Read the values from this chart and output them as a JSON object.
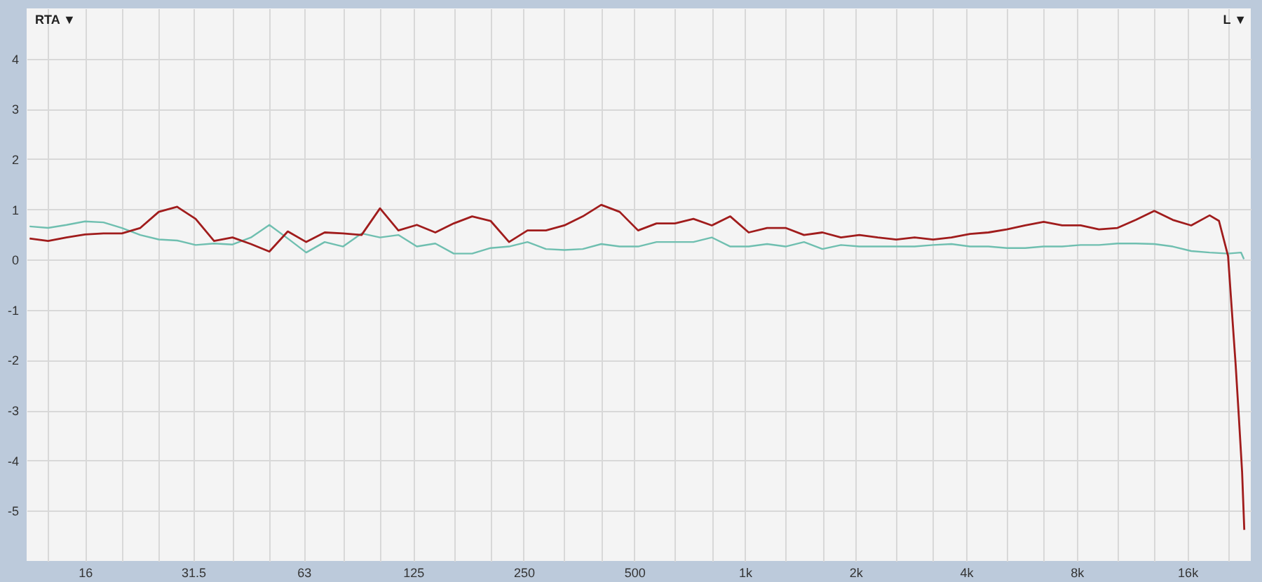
{
  "chart_data": {
    "type": "line",
    "log": "x",
    "grid": true,
    "line_style": "solid",
    "xlim": [
      11.1,
      23800
    ],
    "ylim": [
      -6,
      5
    ],
    "xticks": [
      {
        "value": 12.7,
        "label": null
      },
      16,
      {
        "value": 20.16,
        "label": null
      },
      {
        "value": 25.4,
        "label": null
      },
      31.5,
      {
        "value": 40.3,
        "label": null
      },
      {
        "value": 50.8,
        "label": null
      },
      63,
      {
        "value": 80.6,
        "label": null
      },
      {
        "value": 101.6,
        "label": null
      },
      125,
      {
        "value": 161.3,
        "label": null
      },
      {
        "value": 203.2,
        "label": null
      },
      250,
      {
        "value": 322.5,
        "label": null
      },
      {
        "value": 406.4,
        "label": null
      },
      500,
      {
        "value": 645.1,
        "label": null
      },
      {
        "value": 812.7,
        "label": null
      },
      {
        "value": 1000,
        "label": "1k"
      },
      {
        "value": 1290,
        "label": null
      },
      {
        "value": 1625,
        "label": null
      },
      {
        "value": 2000,
        "label": "2k"
      },
      {
        "value": 2580,
        "label": null
      },
      {
        "value": 3251,
        "label": null
      },
      {
        "value": 4000,
        "label": "4k"
      },
      {
        "value": 5161,
        "label": null
      },
      {
        "value": 6502,
        "label": null
      },
      {
        "value": 8000,
        "label": "8k"
      },
      {
        "value": 10321,
        "label": null
      },
      {
        "value": 13004,
        "label": null
      },
      {
        "value": 16000,
        "label": "16k"
      },
      {
        "value": 20643,
        "label": null
      }
    ],
    "yticks": [
      -5,
      -4,
      -3,
      -2,
      -1,
      0,
      1,
      2,
      3,
      4
    ],
    "annotations": [
      "RTA ▼",
      "L ▼"
    ],
    "series": [
      {
        "color": "#6fbfb0",
        "x": [
          11.31,
          12.7,
          14.25,
          16,
          17.96,
          20.16,
          22.63,
          25.4,
          28.51,
          32,
          35.92,
          40.32,
          45.25,
          50.8,
          57.02,
          64,
          71.84,
          80.63,
          90.51,
          101.6,
          114,
          128,
          143.7,
          161.3,
          181,
          203.2,
          228.1,
          256,
          287.4,
          322.5,
          362,
          406.4,
          456.1,
          512,
          574.7,
          645.1,
          724.1,
          812.7,
          912.3,
          1024,
          1149,
          1290,
          1448,
          1625,
          1825,
          2048,
          2299,
          2580,
          2896,
          3251,
          3649,
          4096,
          4598,
          5161,
          5793,
          6502,
          7298,
          8192,
          9195,
          10321,
          11585,
          13004,
          14596,
          16384,
          18390,
          20643,
          22400,
          22800
        ],
        "values": [
          0.66,
          0.63,
          0.69,
          0.76,
          0.74,
          0.63,
          0.49,
          0.4,
          0.38,
          0.29,
          0.32,
          0.3,
          0.44,
          0.69,
          0.42,
          0.14,
          0.35,
          0.26,
          0.52,
          0.44,
          0.49,
          0.26,
          0.32,
          0.12,
          0.12,
          0.23,
          0.26,
          0.35,
          0.21,
          0.19,
          0.21,
          0.31,
          0.26,
          0.26,
          0.35,
          0.35,
          0.35,
          0.44,
          0.26,
          0.26,
          0.31,
          0.26,
          0.35,
          0.21,
          0.29,
          0.26,
          0.26,
          0.26,
          0.26,
          0.29,
          0.31,
          0.26,
          0.26,
          0.23,
          0.23,
          0.26,
          0.26,
          0.29,
          0.29,
          0.32,
          0.32,
          0.31,
          0.26,
          0.17,
          0.14,
          0.12,
          0.14,
          0.01
        ]
      },
      {
        "color": "#a01c1c",
        "x": [
          11.31,
          12.7,
          14.25,
          16,
          17.96,
          20.16,
          22.63,
          25.4,
          28.51,
          32,
          35.92,
          40.32,
          45.25,
          50.8,
          57.02,
          64,
          71.84,
          80.63,
          90.51,
          101.6,
          114,
          128,
          143.7,
          161.3,
          181,
          203.2,
          228.1,
          256,
          287.4,
          322.5,
          362,
          406.4,
          456.1,
          512,
          574.7,
          645.1,
          724.1,
          812.7,
          912.3,
          1024,
          1149,
          1290,
          1448,
          1625,
          1825,
          2048,
          2299,
          2580,
          2896,
          3251,
          3649,
          4096,
          4598,
          5161,
          5793,
          6502,
          7298,
          8192,
          9195,
          10321,
          11585,
          13004,
          14596,
          16384,
          18390,
          19500,
          20643,
          21150,
          21650,
          22080,
          22540,
          22850
        ],
        "values": [
          0.42,
          0.37,
          0.44,
          0.5,
          0.52,
          0.52,
          0.63,
          0.95,
          1.05,
          0.81,
          0.37,
          0.44,
          0.31,
          0.16,
          0.56,
          0.35,
          0.54,
          0.52,
          0.49,
          1.02,
          0.58,
          0.69,
          0.54,
          0.72,
          0.86,
          0.77,
          0.35,
          0.58,
          0.58,
          0.68,
          0.86,
          1.09,
          0.95,
          0.58,
          0.72,
          0.72,
          0.81,
          0.68,
          0.86,
          0.54,
          0.63,
          0.63,
          0.49,
          0.54,
          0.44,
          0.49,
          0.44,
          0.4,
          0.44,
          0.4,
          0.44,
          0.51,
          0.54,
          0.6,
          0.68,
          0.75,
          0.68,
          0.68,
          0.6,
          0.63,
          0.79,
          0.97,
          0.79,
          0.68,
          0.88,
          0.77,
          0.07,
          -1.04,
          -2.1,
          -3.12,
          -4.23,
          -5.38
        ]
      }
    ]
  }
}
